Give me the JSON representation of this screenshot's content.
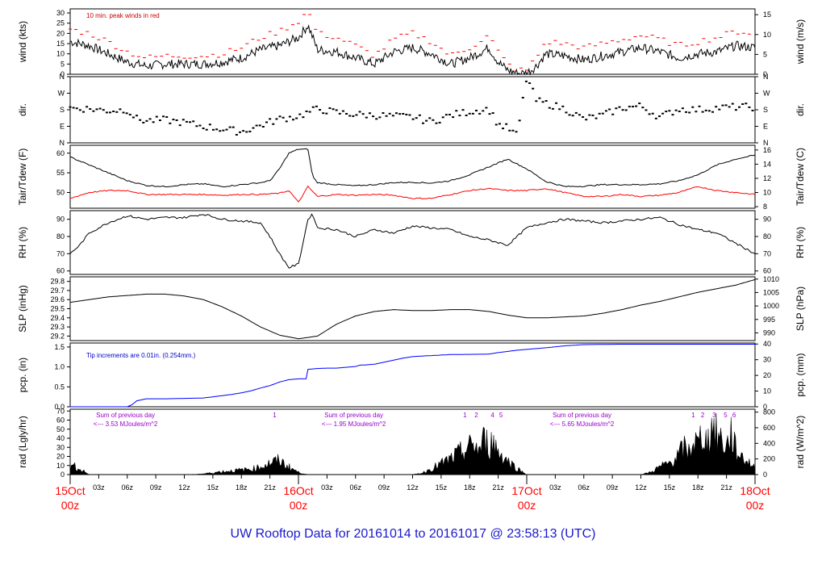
{
  "title": "UW Rooftop Data for 20161014  to  20161017 @ 23:58:13  (UTC)",
  "colors": {
    "black": "#000000",
    "red": "#ff0000",
    "blue": "#0000ff",
    "purple": "#9900cc",
    "title": "#1a1acc"
  },
  "x_axis": {
    "hour_labels": [
      "03z",
      "06z",
      "09z",
      "12z",
      "15z",
      "18z",
      "21z",
      "",
      "03z",
      "06z",
      "09z",
      "12z",
      "15z",
      "18z",
      "21z",
      "",
      "03z",
      "06z",
      "09z",
      "12z",
      "15z",
      "18z",
      "21z"
    ],
    "date_labels": [
      {
        "hours": 0,
        "day": "15Oct",
        "time": "00z"
      },
      {
        "hours": 24,
        "day": "16Oct",
        "time": "00z"
      },
      {
        "hours": 48,
        "day": "17Oct",
        "time": "00z"
      },
      {
        "hours": 72,
        "day": "18Oct",
        "time": "00z"
      }
    ]
  },
  "chart_data": [
    {
      "type": "line",
      "id": "wind",
      "ylabel": "wind (kts)",
      "ylabel_right": "wind (m/s)",
      "ylim": [
        0,
        32
      ],
      "yticks": [
        0,
        5,
        10,
        15,
        20,
        25,
        30
      ],
      "right_ticks": [
        0,
        5,
        10,
        15
      ],
      "right_factor": 1.944,
      "annotation": "10 min. peak winds in red",
      "series": [
        {
          "color": "#000000",
          "x": [
            0,
            2,
            4,
            6,
            8,
            10,
            12,
            14,
            16,
            18,
            20,
            22,
            24,
            25,
            26,
            28,
            30,
            32,
            34,
            36,
            38,
            40,
            42,
            44,
            45,
            46,
            47,
            48,
            49,
            50,
            52,
            54,
            56,
            58,
            60,
            62,
            64,
            66,
            68,
            70,
            72
          ],
          "y": [
            16,
            14,
            10,
            6,
            4,
            5,
            5,
            5,
            6,
            8,
            12,
            14,
            18,
            24,
            12,
            11,
            8,
            5,
            11,
            13,
            10,
            5,
            8,
            13,
            6,
            2,
            0.5,
            0.5,
            4,
            10,
            9,
            7,
            9,
            11,
            13,
            11,
            8,
            10,
            11,
            14,
            13
          ]
        },
        {
          "color": "#ff0000",
          "style": "dashes",
          "x": [
            0,
            2,
            4,
            6,
            8,
            10,
            12,
            14,
            16,
            18,
            20,
            22,
            24,
            25,
            26,
            28,
            30,
            32,
            34,
            36,
            38,
            40,
            42,
            44,
            45,
            46,
            47,
            48,
            49,
            50,
            52,
            54,
            56,
            58,
            60,
            62,
            64,
            66,
            68,
            70,
            72
          ],
          "y": [
            22,
            20,
            16,
            11,
            8,
            9,
            9,
            9,
            10,
            13,
            18,
            21,
            26,
            31,
            20,
            18,
            14,
            9,
            17,
            20,
            16,
            9,
            13,
            19,
            11,
            5,
            2,
            2,
            8,
            16,
            15,
            13,
            15,
            17,
            19,
            17,
            14,
            16,
            18,
            21,
            20
          ]
        }
      ]
    },
    {
      "type": "scatter",
      "id": "dir",
      "ylabel": "dir.",
      "ylabel_right": "dir.",
      "ylim": [
        0,
        360
      ],
      "ytick_values": [
        0,
        90,
        180,
        270,
        360
      ],
      "ytick_labels": [
        "N",
        "E",
        "S",
        "W",
        "N"
      ],
      "series": [
        {
          "color": "#000000",
          "x": [
            0,
            2,
            4,
            6,
            7,
            8,
            10,
            12,
            14,
            16,
            18,
            20,
            22,
            24,
            26,
            28,
            30,
            32,
            34,
            36,
            38,
            40,
            42,
            44,
            45,
            46,
            47,
            48,
            49,
            50,
            52,
            54,
            56,
            58,
            60,
            62,
            64,
            66,
            68,
            70,
            72
          ],
          "y": [
            190,
            185,
            175,
            180,
            130,
            120,
            125,
            110,
            90,
            75,
            60,
            95,
            130,
            145,
            185,
            165,
            155,
            150,
            145,
            140,
            115,
            150,
            170,
            185,
            100,
            80,
            40,
            360,
            230,
            215,
            185,
            130,
            150,
            190,
            200,
            140,
            185,
            180,
            190,
            195,
            195
          ]
        }
      ]
    },
    {
      "type": "line",
      "id": "temp",
      "ylabel": "Tair/Tdew (F)",
      "ylabel_right": "Tair/Tdew (C)",
      "ylim": [
        46,
        62
      ],
      "yticks": [
        50,
        55,
        60
      ],
      "right_ticks": [
        8,
        10,
        12,
        14,
        16
      ],
      "right_unit": "celsius",
      "series": [
        {
          "color": "#000000",
          "x": [
            0,
            2,
            4,
            6,
            8,
            10,
            12,
            14,
            16,
            18,
            20,
            21,
            22,
            23,
            24,
            25,
            25.5,
            26,
            28,
            30,
            32,
            34,
            36,
            38,
            40,
            42,
            44,
            46,
            48,
            50,
            52,
            54,
            56,
            58,
            60,
            62,
            64,
            66,
            68,
            70,
            72
          ],
          "y": [
            59,
            57,
            55,
            53,
            51.8,
            51.5,
            52,
            52.2,
            51.5,
            52,
            52.5,
            53,
            56,
            60,
            61,
            61,
            54,
            52.5,
            52,
            51.7,
            52,
            52.5,
            52.6,
            52.4,
            53,
            54.5,
            56.5,
            58.5,
            56,
            52.8,
            51.5,
            51.6,
            52,
            52,
            52,
            52.2,
            53,
            54.5,
            57,
            58.5,
            59.5
          ]
        },
        {
          "color": "#ff0000",
          "x": [
            0,
            2,
            4,
            6,
            8,
            10,
            12,
            14,
            16,
            18,
            20,
            22,
            23,
            24,
            25,
            26,
            28,
            30,
            32,
            34,
            36,
            38,
            40,
            42,
            44,
            46,
            48,
            50,
            52,
            54,
            56,
            58,
            60,
            62,
            64,
            66,
            68,
            70,
            72
          ],
          "y": [
            48.5,
            50,
            50.5,
            50.5,
            49.5,
            49.5,
            49.5,
            49.5,
            49.3,
            49.5,
            49.5,
            49.8,
            50.5,
            47.5,
            51.5,
            49,
            49.5,
            49.3,
            49.5,
            49.3,
            48.5,
            48.5,
            49.5,
            50.5,
            51,
            50.5,
            50.5,
            51,
            50,
            49,
            49,
            49.5,
            49,
            49.3,
            50,
            51.5,
            50.5,
            50,
            49.5
          ]
        }
      ]
    },
    {
      "type": "line",
      "id": "rh",
      "ylabel": "RH (%)",
      "ylabel_right": "RH (%)",
      "ylim": [
        58,
        95
      ],
      "yticks": [
        60,
        70,
        80,
        90
      ],
      "series": [
        {
          "color": "#000000",
          "x": [
            0,
            1,
            2,
            4,
            6,
            8,
            10,
            12,
            14,
            16,
            18,
            20,
            21,
            22,
            23,
            24,
            25,
            25.5,
            26,
            28,
            30,
            32,
            34,
            36,
            38,
            40,
            42,
            44,
            46,
            48,
            50,
            52,
            54,
            56,
            58,
            60,
            62,
            64,
            66,
            68,
            70,
            72
          ],
          "y": [
            70,
            75,
            82,
            88,
            92,
            90,
            91,
            91,
            93,
            90,
            89,
            88,
            80,
            70,
            62,
            64,
            90,
            93,
            85,
            84,
            80,
            84,
            82,
            86,
            85,
            84,
            80,
            78,
            75,
            85,
            88,
            90,
            89,
            88,
            89,
            90,
            91,
            87,
            84,
            82,
            76,
            70
          ]
        }
      ]
    },
    {
      "type": "line",
      "id": "slp",
      "ylabel": "SLP (inHg)",
      "ylabel_right": "SLP (hPa)",
      "ylim": [
        29.15,
        29.85
      ],
      "yticks": [
        29.2,
        29.3,
        29.4,
        29.5,
        29.6,
        29.7,
        29.8
      ],
      "right_ticks": [
        990,
        995,
        1000,
        1005,
        1010
      ],
      "right_unit": "hpa",
      "series": [
        {
          "color": "#000000",
          "x": [
            0,
            4,
            8,
            10,
            12,
            14,
            16,
            18,
            20,
            22,
            24,
            26,
            28,
            30,
            32,
            34,
            36,
            38,
            40,
            42,
            44,
            46,
            48,
            50,
            52,
            54,
            56,
            58,
            60,
            62,
            64,
            66,
            68,
            70,
            72
          ],
          "y": [
            29.57,
            29.63,
            29.66,
            29.66,
            29.64,
            29.6,
            29.52,
            29.42,
            29.3,
            29.21,
            29.17,
            29.2,
            29.33,
            29.42,
            29.47,
            29.49,
            29.48,
            29.48,
            29.49,
            29.49,
            29.47,
            29.43,
            29.4,
            29.4,
            29.41,
            29.42,
            29.45,
            29.49,
            29.54,
            29.58,
            29.63,
            29.68,
            29.72,
            29.76,
            29.82
          ]
        }
      ]
    },
    {
      "type": "area",
      "id": "pcp",
      "ylabel": "pcp. (in)",
      "ylabel_right": "pcp. (mm)",
      "ylim": [
        0,
        1.6
      ],
      "yticks": [
        0.0,
        0.5,
        1.0,
        1.5
      ],
      "right_ticks": [
        0,
        10,
        20,
        30,
        40
      ],
      "right_unit": "mm",
      "annotation": "Tip increments are 0.01in. (0.254mm.)",
      "series": [
        {
          "color": "#0000ff",
          "x": [
            0,
            6,
            6.5,
            7,
            8,
            10,
            12,
            14,
            15,
            16,
            17,
            18,
            19,
            20,
            21,
            22,
            23,
            24,
            24.8,
            25,
            26,
            27,
            28,
            29,
            30,
            30.5,
            31,
            32,
            33,
            34,
            35,
            36,
            40,
            44,
            45,
            46,
            47,
            48,
            50,
            52,
            54,
            58,
            62,
            66,
            72
          ],
          "y": [
            0.0,
            0.0,
            0.05,
            0.15,
            0.2,
            0.2,
            0.21,
            0.22,
            0.25,
            0.28,
            0.31,
            0.35,
            0.4,
            0.47,
            0.53,
            0.62,
            0.68,
            0.7,
            0.7,
            0.94,
            0.96,
            0.97,
            0.97,
            0.99,
            1.01,
            1.05,
            1.05,
            1.07,
            1.12,
            1.17,
            1.22,
            1.26,
            1.31,
            1.32,
            1.36,
            1.39,
            1.42,
            1.44,
            1.48,
            1.53,
            1.56,
            1.57,
            1.57,
            1.57,
            1.57
          ]
        }
      ]
    },
    {
      "type": "area",
      "id": "rad",
      "ylabel": "rad (Lgly/hr)",
      "ylabel_right": "rad (W/m^2)",
      "ylim": [
        0,
        72
      ],
      "yticks": [
        0,
        10,
        20,
        30,
        40,
        50,
        60,
        70
      ],
      "right_ticks": [
        0,
        200,
        400,
        600,
        800
      ],
      "right_factor": 0.086,
      "annotations": [
        {
          "hours": 2,
          "lines": [
            "Sum of previous day",
            "<--- 3.53 MJoules/m^2"
          ]
        },
        {
          "hours": 26,
          "lines": [
            "Sum of previous day",
            "<--- 1.95 MJoules/m^2"
          ]
        },
        {
          "hours": 50,
          "lines": [
            "Sum of previous day",
            "<--- 5.65 MJoules/m^2"
          ]
        }
      ],
      "markers": [
        {
          "hours": 21.5,
          "label": "1"
        },
        {
          "hours": 41.5,
          "label": "1"
        },
        {
          "hours": 42.7,
          "label": "2"
        },
        {
          "hours": 44.4,
          "label": "4"
        },
        {
          "hours": 45.3,
          "label": "5"
        },
        {
          "hours": 65.5,
          "label": "1"
        },
        {
          "hours": 66.5,
          "label": "2"
        },
        {
          "hours": 67.7,
          "label": "3"
        },
        {
          "hours": 68.9,
          "label": "5"
        },
        {
          "hours": 69.8,
          "label": "6"
        }
      ],
      "series": [
        {
          "color": "#000000",
          "x": [
            0,
            0.5,
            1,
            1.5,
            2,
            12.5,
            14,
            16,
            18,
            19,
            20,
            21,
            22,
            23,
            24,
            25,
            36,
            37,
            38,
            39,
            40,
            41,
            42,
            42.5,
            43,
            43.5,
            44,
            44.5,
            45,
            46,
            47,
            48,
            60,
            61,
            62,
            63,
            64,
            64.5,
            65,
            65.5,
            66,
            66.5,
            67,
            67.5,
            68,
            68.5,
            69,
            69.5,
            70,
            71,
            72
          ],
          "y": [
            8,
            12,
            6,
            4,
            0,
            0,
            1,
            4,
            6,
            7,
            10,
            15,
            18,
            10,
            3,
            0,
            0,
            2,
            8,
            14,
            20,
            28,
            35,
            40,
            30,
            45,
            38,
            42,
            30,
            18,
            8,
            0,
            0,
            3,
            10,
            15,
            25,
            35,
            28,
            45,
            38,
            55,
            40,
            65,
            50,
            45,
            35,
            55,
            30,
            20,
            8
          ]
        }
      ]
    }
  ]
}
